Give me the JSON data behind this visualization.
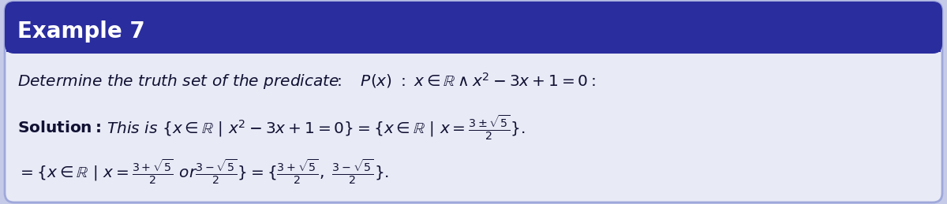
{
  "title": "Example 7",
  "title_bg_color": "#2a2d9e",
  "title_text_color": "#ffffff",
  "body_bg_color": "#e8eaf6",
  "border_color": "#9fa8da",
  "outer_bg_color": "#c5cae9",
  "fig_width": 12.0,
  "fig_height": 2.59,
  "dpi": 100,
  "title_fontsize": 20,
  "text_fontsize": 14.5,
  "text_color": "#111133"
}
